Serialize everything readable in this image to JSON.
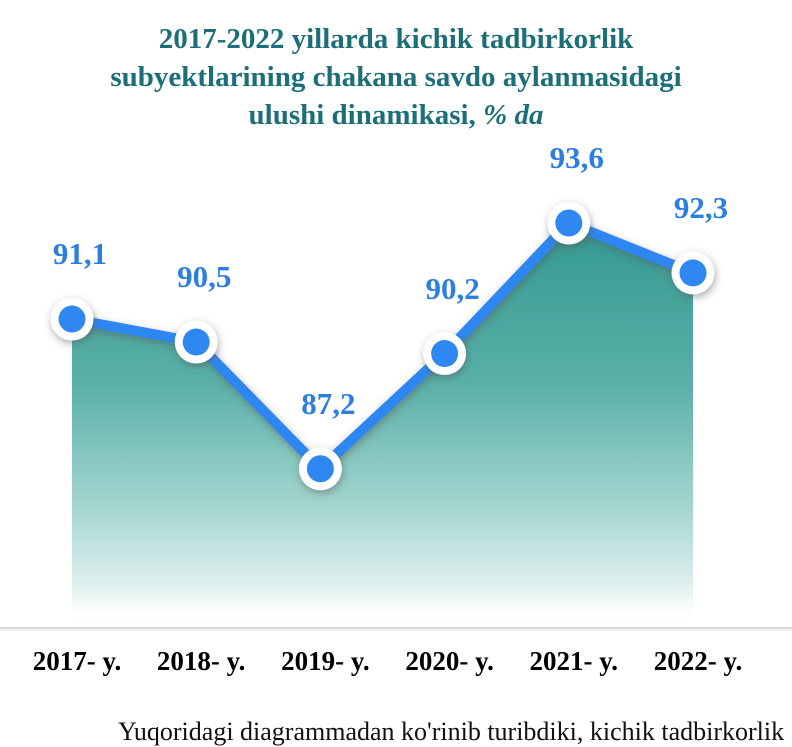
{
  "title": {
    "line1": "2017-2022 yillarda kichik tadbirkorlik",
    "line2": "subyektlarining chakana savdo aylanmasidagi",
    "line3_text": "ulushi dinamikasi, ",
    "line3_italic": "% da"
  },
  "chart_data": {
    "type": "area",
    "title": "2017-2022 yillarda kichik tadbirkorlik subyektlarining chakana savdo aylanmasidagi ulushi dinamikasi, % da",
    "categories": [
      "2017- y.",
      "2018- y.",
      "2019- y.",
      "2020- y.",
      "2021- y.",
      "2022- y."
    ],
    "values": [
      91.1,
      90.5,
      87.2,
      90.2,
      93.6,
      92.3
    ],
    "point_labels": [
      "91,1",
      "90,5",
      "87,2",
      "90,2",
      "93,6",
      "92,3"
    ],
    "ylabel": "",
    "xlabel": "",
    "ylim_estimated": [
      83,
      95
    ],
    "grid": false,
    "legend": "none",
    "colors": {
      "line": "#2F87F1",
      "marker_fill": "#2F87F1",
      "marker_ring": "#FFFFFF",
      "area_top": "#2F978E",
      "area_mid": "#5AB0A8",
      "area_low": "#A5D6D1",
      "area_bottom": "#FDFFFE",
      "value_label": "#2C7EE0",
      "title": "#1C6E79",
      "axis_label": "#000000",
      "baseline": "#D9D9D9"
    }
  },
  "footer": {
    "clipped_caption": "Yuqoridagi diagrammadan ko'rinib turibdiki, kichik tadbirkorlik"
  }
}
